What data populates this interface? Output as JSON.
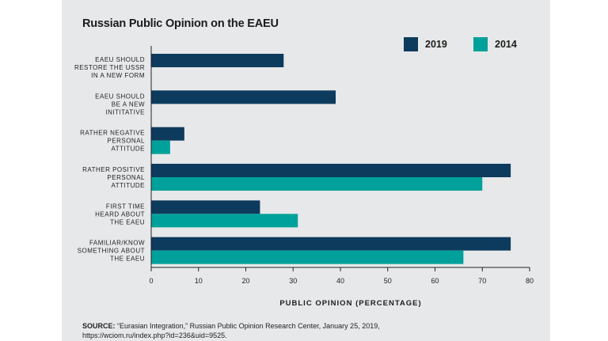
{
  "chart_data": {
    "type": "bar",
    "orientation": "horizontal",
    "title": "Russian Public Opinion on the EAEU",
    "xlabel": "PUBLIC OPINION (PERCENTAGE)",
    "ylabel": "",
    "xlim": [
      0,
      80
    ],
    "xticks": [
      0,
      10,
      20,
      30,
      40,
      50,
      60,
      70,
      80
    ],
    "grid": false,
    "legend_position": "top-right",
    "categories": [
      [
        "EAEU SHOULD",
        "RESTORE THE USSR",
        "IN A NEW FORM"
      ],
      [
        "EAEU SHOULD",
        "BE A NEW",
        "INITITATIVE"
      ],
      [
        "RATHER NEGATIVE",
        "PERSONAL",
        "ATTITUDE"
      ],
      [
        "RATHER POSITIVE",
        "PERSONAL",
        "ATTITUDE"
      ],
      [
        "FIRST TIME",
        "HEARD ABOUT",
        "THE EAEU"
      ],
      [
        "FAMILIAR/KNOW",
        "SOMETHING ABOUT",
        "THE EAEU"
      ]
    ],
    "series": [
      {
        "name": "2019",
        "color": "#0d3b5e",
        "values": [
          28,
          39,
          7,
          76,
          23,
          76
        ]
      },
      {
        "name": "2014",
        "color": "#00a19a",
        "values": [
          null,
          null,
          4,
          70,
          31,
          66
        ]
      }
    ]
  },
  "source": {
    "label": "SOURCE:",
    "text": "“Eurasian Integration,” Russian Public Opinion Research Center, January 25, 2019,",
    "url": "https://wciom.ru/index.php?id=236&uid=9525."
  }
}
